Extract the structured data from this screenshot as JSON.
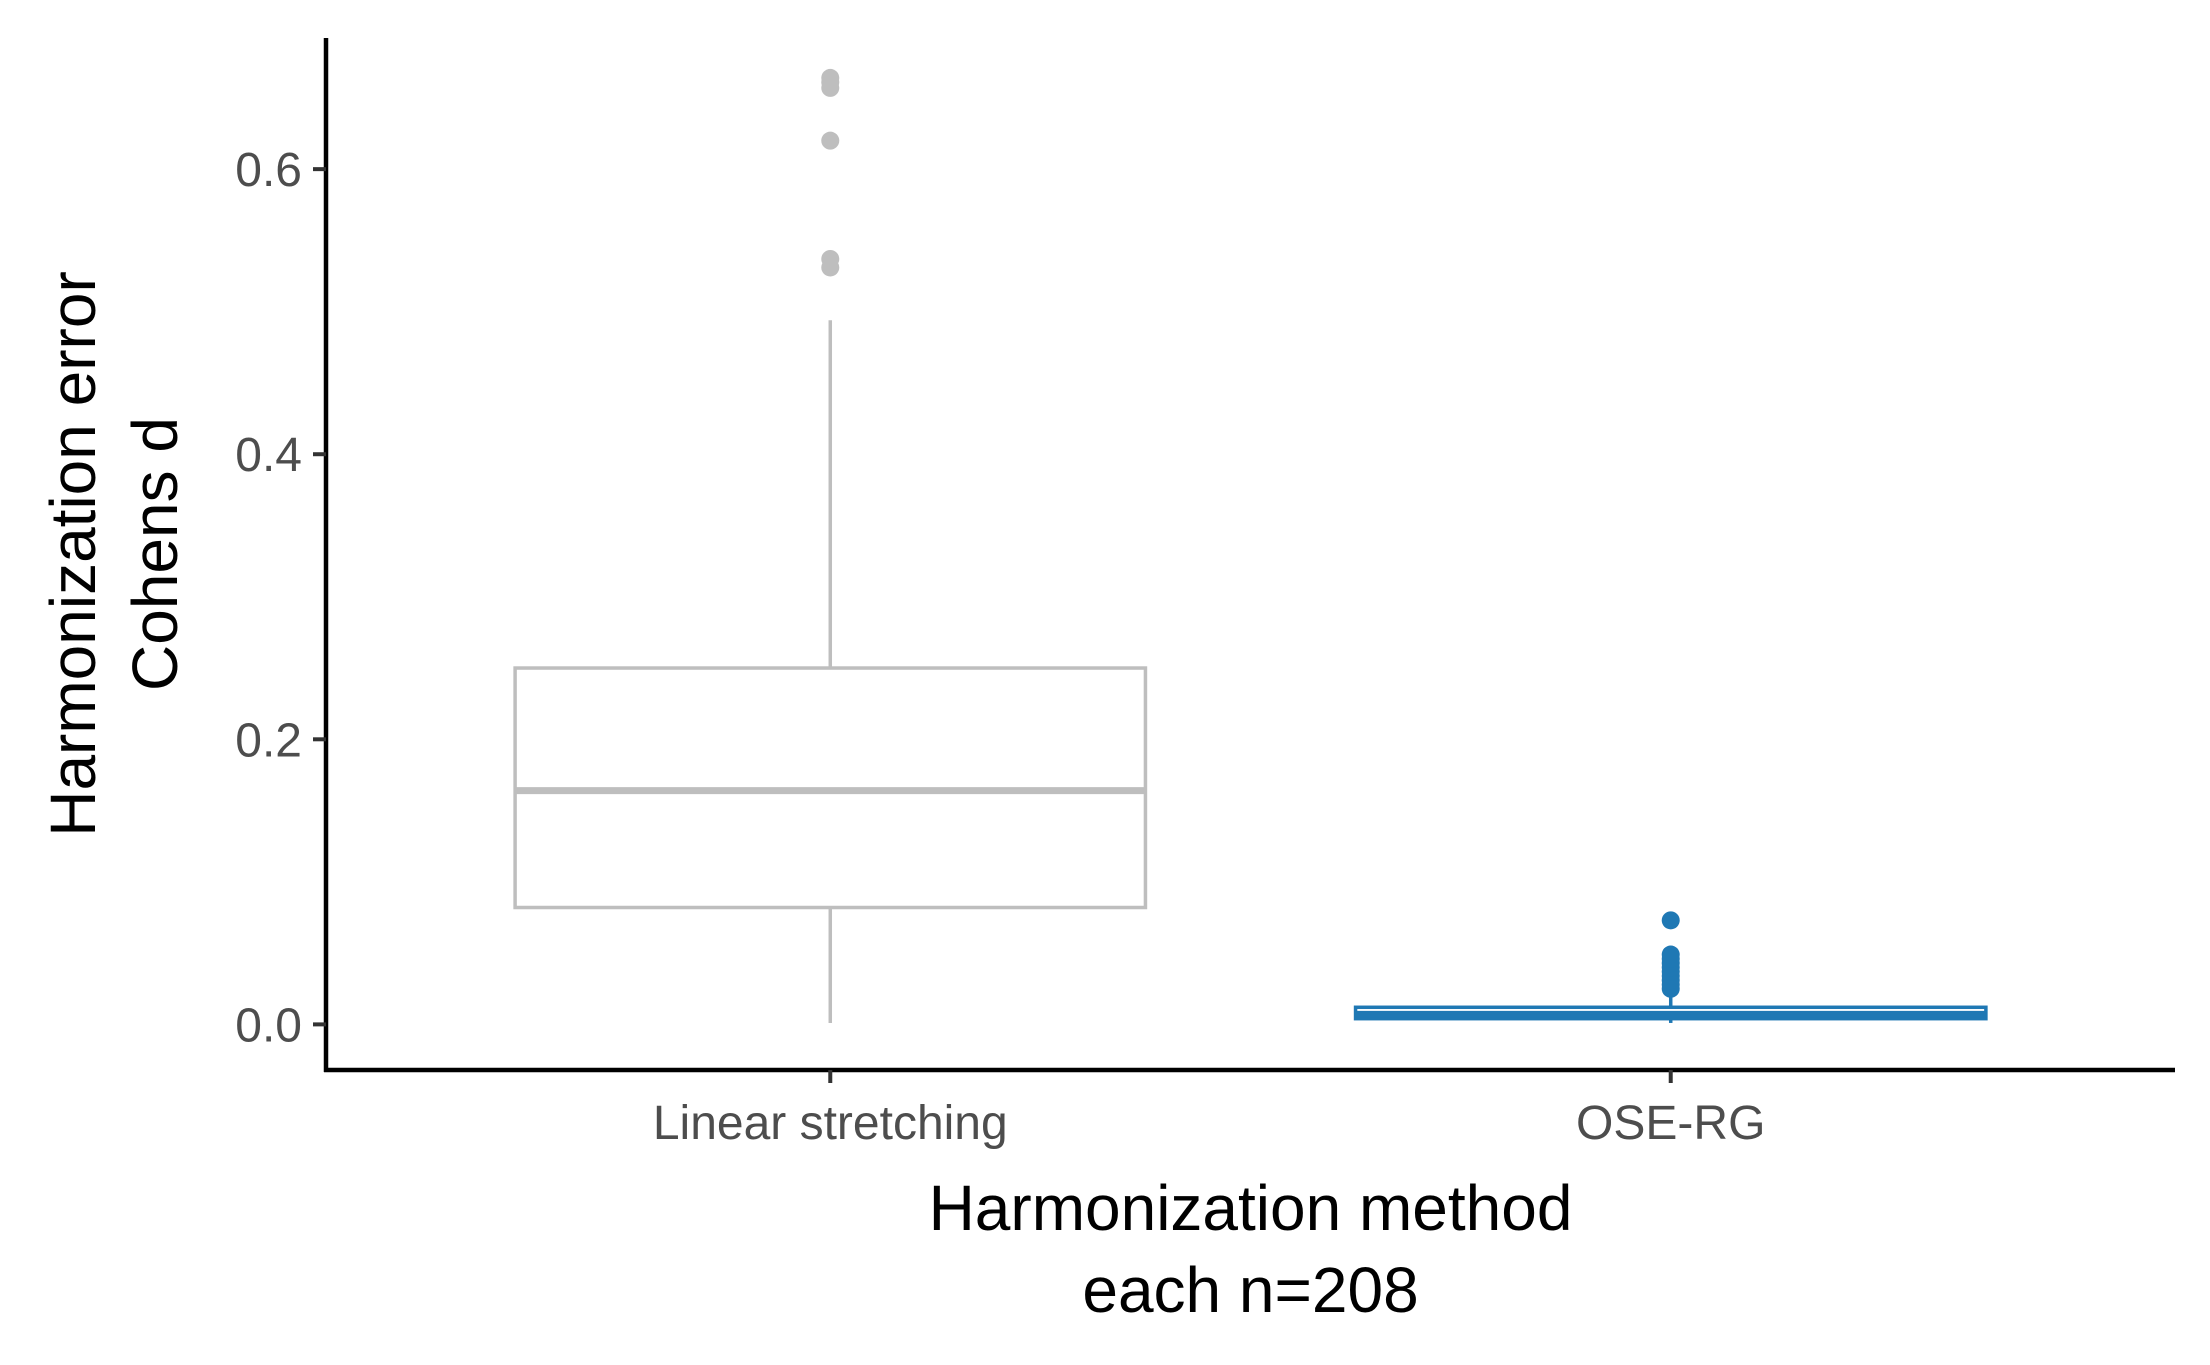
{
  "chart_data": {
    "type": "boxplot",
    "title": "",
    "xlabel": [
      "Harmonization method",
      "each n=208"
    ],
    "ylabel": [
      "Harmonization error",
      "Cohens d"
    ],
    "ylim": [
      -0.032,
      0.692
    ],
    "y_ticks": [
      0.0,
      0.2,
      0.4,
      0.6
    ],
    "y_tick_labels": [
      "0.0",
      "0.2",
      "0.4",
      "0.6"
    ],
    "categories": [
      "Linear stretching",
      "OSE-RG"
    ],
    "grid": false,
    "legend": "none",
    "boxes": [
      {
        "category": "Linear stretching",
        "color": "#bebebe",
        "whisker_low": 0.001,
        "q1": 0.082,
        "median": 0.164,
        "q3": 0.25,
        "whisker_high": 0.494,
        "outliers": [
          0.531,
          0.537,
          0.62,
          0.657,
          0.661,
          0.664
        ]
      },
      {
        "category": "OSE-RG",
        "color": "#1f78b4",
        "whisker_low": 0.001,
        "q1": 0.004,
        "median": 0.007,
        "q3": 0.012,
        "whisker_high": 0.019,
        "outliers": [
          0.025,
          0.028,
          0.031,
          0.034,
          0.037,
          0.04,
          0.043,
          0.046,
          0.049,
          0.073
        ]
      }
    ]
  }
}
